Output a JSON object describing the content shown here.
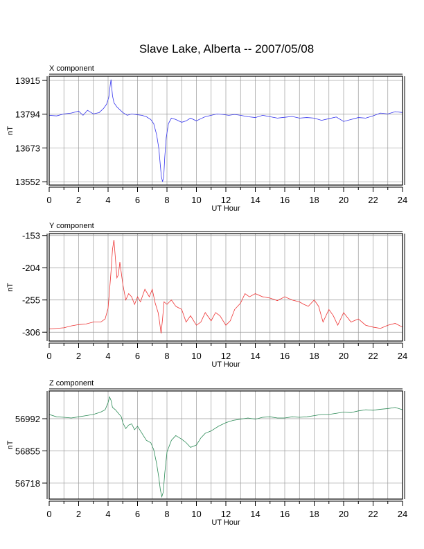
{
  "figure": {
    "title": "Slave Lake, Alberta -- 2007/05/08"
  },
  "chart_data": [
    {
      "type": "line",
      "title": "X component",
      "xlabel": "UT Hour",
      "ylabel": "nT",
      "xlim": [
        0,
        24
      ],
      "ylim": [
        13540,
        13930
      ],
      "xticks": [
        0,
        2,
        4,
        6,
        8,
        10,
        12,
        14,
        16,
        18,
        20,
        22,
        24
      ],
      "yticks": [
        13552,
        13673,
        13794,
        13915
      ],
      "grid": true,
      "color": "#3333ee",
      "series": [
        {
          "x": [
            0,
            0.5,
            1,
            1.5,
            2,
            2.3,
            2.6,
            3,
            3.4,
            3.7,
            3.9,
            4.05,
            4.15,
            4.2,
            4.3,
            4.4,
            4.6,
            4.8,
            5,
            5.3,
            5.6,
            6,
            6.3,
            6.6,
            6.9,
            7.1,
            7.3,
            7.45,
            7.55,
            7.62,
            7.7,
            7.78,
            7.85,
            7.95,
            8.1,
            8.3,
            8.6,
            9,
            9.3,
            9.6,
            10,
            10.3,
            10.6,
            11,
            11.4,
            11.8,
            12.2,
            12.6,
            13,
            13.5,
            14,
            14.5,
            15,
            15.5,
            16,
            16.5,
            17,
            17.5,
            18,
            18.5,
            19,
            19.5,
            20,
            20.5,
            21,
            21.5,
            22,
            22.5,
            23,
            23.5,
            24
          ],
          "y": [
            13790,
            13788,
            13795,
            13798,
            13805,
            13790,
            13808,
            13795,
            13800,
            13815,
            13830,
            13855,
            13900,
            13918,
            13860,
            13835,
            13820,
            13810,
            13800,
            13790,
            13795,
            13792,
            13790,
            13785,
            13775,
            13760,
            13720,
            13670,
            13610,
            13570,
            13552,
            13570,
            13640,
            13710,
            13760,
            13780,
            13775,
            13765,
            13770,
            13780,
            13770,
            13778,
            13785,
            13790,
            13795,
            13793,
            13790,
            13793,
            13790,
            13785,
            13782,
            13790,
            13785,
            13780,
            13783,
            13786,
            13780,
            13782,
            13780,
            13772,
            13778,
            13784,
            13768,
            13775,
            13782,
            13780,
            13788,
            13798,
            13795,
            13803,
            13800
          ]
        }
      ]
    },
    {
      "type": "line",
      "title": "Y component",
      "xlabel": "UT Hour",
      "ylabel": "nT",
      "xlim": [
        0,
        24
      ],
      "ylim": [
        -320,
        -150
      ],
      "xticks": [
        0,
        2,
        4,
        6,
        8,
        10,
        12,
        14,
        16,
        18,
        20,
        22,
        24
      ],
      "yticks": [
        -153,
        -204,
        -255,
        -306
      ],
      "grid": true,
      "color": "#ee3333",
      "series": [
        {
          "x": [
            0,
            0.5,
            1,
            1.5,
            2,
            2.5,
            3,
            3.5,
            3.8,
            4,
            4.1,
            4.2,
            4.3,
            4.4,
            4.5,
            4.6,
            4.7,
            4.8,
            5,
            5.2,
            5.4,
            5.6,
            5.8,
            6,
            6.2,
            6.5,
            6.8,
            7,
            7.2,
            7.4,
            7.5,
            7.6,
            7.7,
            7.8,
            8,
            8.3,
            8.6,
            9,
            9.3,
            9.6,
            10,
            10.3,
            10.6,
            11,
            11.3,
            11.6,
            12,
            12.3,
            12.6,
            13,
            13.3,
            13.6,
            14,
            14.5,
            15,
            15.5,
            16,
            16.5,
            17,
            17.3,
            17.6,
            18,
            18.3,
            18.6,
            19,
            19.3,
            19.6,
            20,
            20.5,
            21,
            21.5,
            22,
            22.5,
            23,
            23.5,
            24
          ],
          "y": [
            -301,
            -300,
            -299,
            -296,
            -294,
            -293,
            -290,
            -290,
            -285,
            -268,
            -240,
            -210,
            -175,
            -160,
            -190,
            -220,
            -215,
            -195,
            -230,
            -255,
            -245,
            -250,
            -262,
            -250,
            -258,
            -238,
            -250,
            -238,
            -260,
            -275,
            -290,
            -308,
            -285,
            -258,
            -262,
            -255,
            -265,
            -270,
            -290,
            -280,
            -295,
            -290,
            -275,
            -288,
            -275,
            -280,
            -295,
            -288,
            -270,
            -260,
            -245,
            -250,
            -245,
            -250,
            -252,
            -256,
            -250,
            -255,
            -258,
            -262,
            -265,
            -255,
            -265,
            -290,
            -270,
            -280,
            -295,
            -275,
            -290,
            -285,
            -295,
            -298,
            -300,
            -295,
            -292,
            -298
          ]
        }
      ]
    },
    {
      "type": "line",
      "title": "Z component",
      "xlabel": "UT Hour",
      "ylabel": "nT",
      "xlim": [
        0,
        24
      ],
      "ylim": [
        56650,
        57110
      ],
      "xticks": [
        0,
        2,
        4,
        6,
        8,
        10,
        12,
        14,
        16,
        18,
        20,
        22,
        24
      ],
      "yticks": [
        56718,
        56855,
        56992
      ],
      "grid": true,
      "color": "#2a8a55",
      "series": [
        {
          "x": [
            0,
            0.5,
            1,
            1.5,
            2,
            2.5,
            3,
            3.5,
            3.8,
            4,
            4.1,
            4.2,
            4.3,
            4.5,
            4.7,
            4.9,
            5,
            5.2,
            5.4,
            5.6,
            5.8,
            6,
            6.3,
            6.6,
            6.9,
            7.1,
            7.3,
            7.45,
            7.55,
            7.65,
            7.75,
            7.85,
            8,
            8.3,
            8.6,
            9,
            9.3,
            9.6,
            10,
            10.3,
            10.6,
            11,
            11.5,
            12,
            12.5,
            13,
            13.5,
            14,
            14.5,
            15,
            15.5,
            16,
            16.5,
            17,
            17.5,
            18,
            18.5,
            19,
            19.5,
            20,
            20.5,
            21,
            21.5,
            22,
            22.5,
            23,
            23.5,
            24
          ],
          "y": [
            57010,
            57000,
            56998,
            56995,
            57000,
            57005,
            57010,
            57020,
            57030,
            57060,
            57085,
            57070,
            57040,
            57030,
            57015,
            57000,
            56975,
            56950,
            56965,
            56970,
            56945,
            56960,
            56930,
            56900,
            56890,
            56860,
            56800,
            56740,
            56690,
            56660,
            56680,
            56760,
            56850,
            56900,
            56920,
            56905,
            56890,
            56870,
            56880,
            56910,
            56930,
            56940,
            56960,
            56975,
            56985,
            56990,
            56995,
            56990,
            56998,
            57000,
            56995,
            56995,
            57000,
            56998,
            57000,
            57005,
            57010,
            57010,
            57015,
            57020,
            57018,
            57025,
            57030,
            57028,
            57032,
            57035,
            57040,
            57030
          ]
        }
      ]
    }
  ]
}
